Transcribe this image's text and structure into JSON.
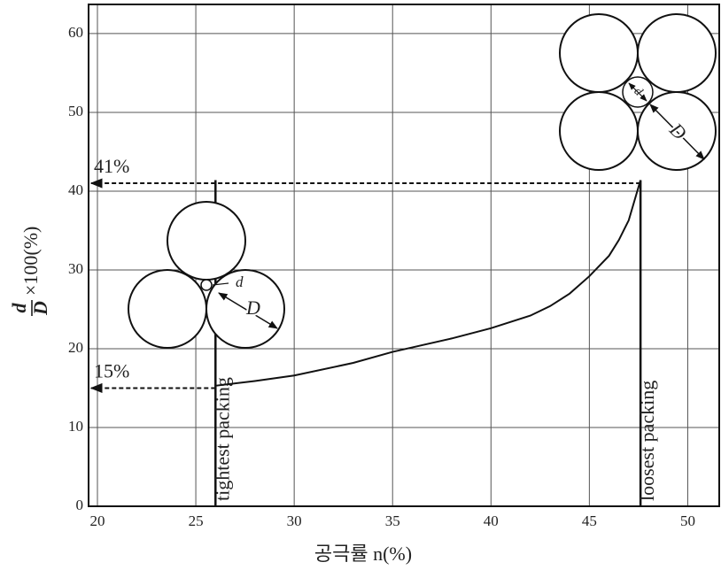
{
  "chart_data": {
    "type": "line",
    "x_label": "공극률 n(%)",
    "y_label": {
      "numerator": "d",
      "denominator": "D",
      "suffix": "×100(%)"
    },
    "x": [
      26,
      28,
      30,
      33,
      35,
      38,
      40,
      42,
      43,
      44,
      45,
      46,
      46.5,
      47,
      47.6
    ],
    "series": [
      {
        "color": "#111",
        "values": [
          15.3,
          15.9,
          16.6,
          18.2,
          19.6,
          21.3,
          22.6,
          24.2,
          25.4,
          27,
          29.2,
          31.8,
          33.8,
          36.3,
          41.4
        ]
      }
    ],
    "xlim": [
      19.55,
      51.6
    ],
    "ylim": [
      0,
      63.7
    ],
    "xticks": [
      20,
      25,
      30,
      35,
      40,
      45,
      50
    ],
    "yticks": [
      0,
      10,
      20,
      30,
      40,
      50,
      60
    ],
    "grid": true,
    "reference_lines": [
      {
        "x": 26,
        "y": 41.4,
        "label": "tightest packing"
      },
      {
        "x": 47.6,
        "y": 41.4,
        "label": "loosest packing"
      }
    ],
    "arrows": [
      {
        "y": 41,
        "from_x": 47.6,
        "label": "41%"
      },
      {
        "y": 15,
        "from_x": 26,
        "label": "15%"
      }
    ],
    "diagram_labels": {
      "pore": "d",
      "grain": "D"
    }
  }
}
